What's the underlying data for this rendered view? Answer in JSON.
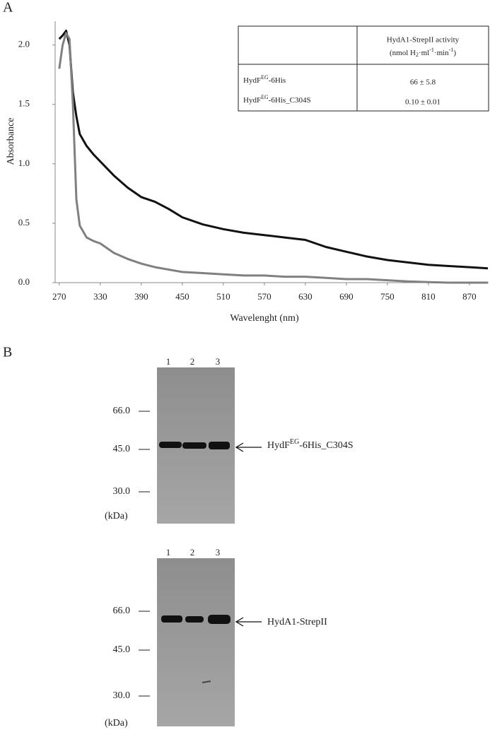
{
  "panel_labels": [
    "A",
    "B"
  ],
  "chart_data": {
    "type": "line",
    "xlabel": "Wavelenght (nm)",
    "ylabel": "Absorbance",
    "x": [
      270,
      275,
      280,
      285,
      290,
      295,
      300,
      310,
      320,
      330,
      350,
      370,
      390,
      410,
      430,
      450,
      480,
      510,
      540,
      570,
      600,
      630,
      660,
      690,
      720,
      750,
      780,
      810,
      840,
      870,
      897
    ],
    "series": [
      {
        "color": "#111111",
        "values": [
          2.05,
          2.08,
          2.12,
          2.0,
          1.6,
          1.4,
          1.25,
          1.15,
          1.08,
          1.02,
          0.9,
          0.8,
          0.72,
          0.68,
          0.62,
          0.55,
          0.49,
          0.45,
          0.42,
          0.4,
          0.38,
          0.36,
          0.3,
          0.26,
          0.22,
          0.19,
          0.17,
          0.15,
          0.14,
          0.13,
          0.12
        ]
      },
      {
        "color": "#808080",
        "values": [
          1.8,
          2.0,
          2.1,
          2.05,
          1.5,
          0.7,
          0.48,
          0.38,
          0.35,
          0.33,
          0.25,
          0.2,
          0.16,
          0.13,
          0.11,
          0.09,
          0.08,
          0.07,
          0.06,
          0.06,
          0.05,
          0.05,
          0.04,
          0.03,
          0.03,
          0.02,
          0.01,
          0.005,
          0,
          0,
          0
        ]
      }
    ],
    "xlim": [
      264,
      898
    ],
    "xticks": [
      270,
      330,
      390,
      450,
      510,
      570,
      630,
      690,
      750,
      810,
      870
    ],
    "ylim": [
      0,
      2.2
    ],
    "yticks": [
      {
        "value": 0,
        "label": "0.0"
      },
      0.5,
      {
        "value": 1,
        "label": "1.0"
      },
      1.5,
      {
        "value": 2,
        "label": "2.0"
      }
    ]
  },
  "table": {
    "header": [
      "HydA1-StrepII activity",
      "(nmol H",
      "2",
      "·ml",
      "-1",
      "·min",
      "-1",
      ")"
    ],
    "rows": [
      {
        "name": [
          "HydF",
          "EG",
          "-6His"
        ],
        "activity": "66 ± 5.8"
      },
      {
        "name": [
          "HydF",
          "EG",
          "-6His_C304S"
        ],
        "activity": "0.10 ± 0.01"
      }
    ]
  },
  "blots": [
    {
      "lanes": [
        "1",
        "2",
        "3"
      ],
      "markers": [
        "66.0",
        "45.0",
        "30.0"
      ],
      "unit": "(kDa)",
      "label": [
        "HydF",
        "EG",
        "-6His_C304S"
      ]
    },
    {
      "lanes": [
        "1",
        "2",
        "3"
      ],
      "markers": [
        "66.0",
        "45.0",
        "30.0"
      ],
      "unit": "(kDa)",
      "label": [
        "HydA1-StrepII"
      ]
    }
  ]
}
